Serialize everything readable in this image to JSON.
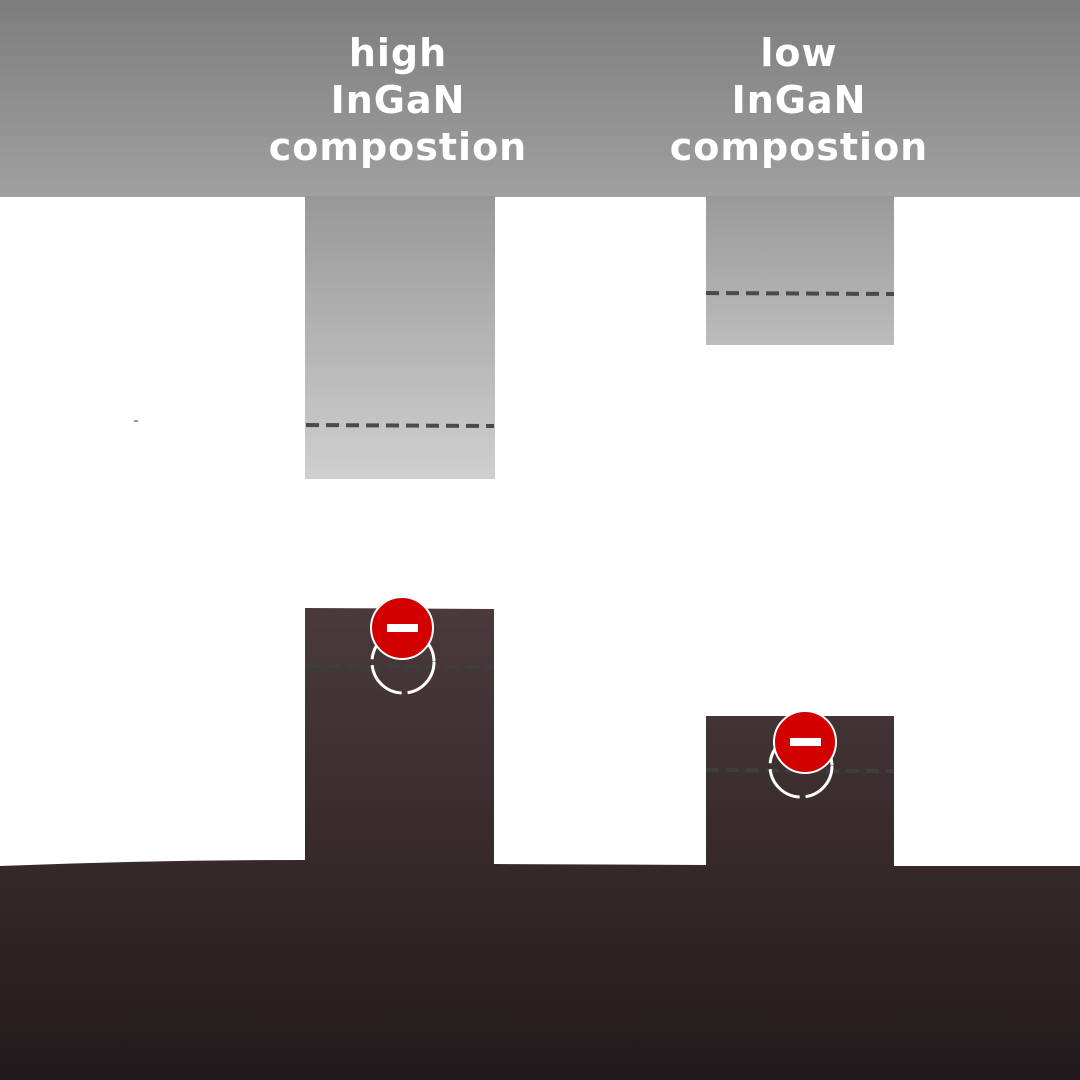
{
  "diagram": {
    "labels": [
      {
        "line1": "high",
        "line2": "InGaN",
        "line3": "compostion"
      },
      {
        "line1": "low",
        "line2": "InGaN",
        "line3": "compostion"
      }
    ],
    "charge_symbol": "−",
    "colors": {
      "conduction_band_top": "#7d7d7d",
      "conduction_band_bottom": "#a2a2a2",
      "valence_band_top": "#4a3a3b",
      "valence_band_bottom": "#231b1d",
      "hole_red": "#d20000",
      "dash": "#4a4a4a"
    }
  }
}
